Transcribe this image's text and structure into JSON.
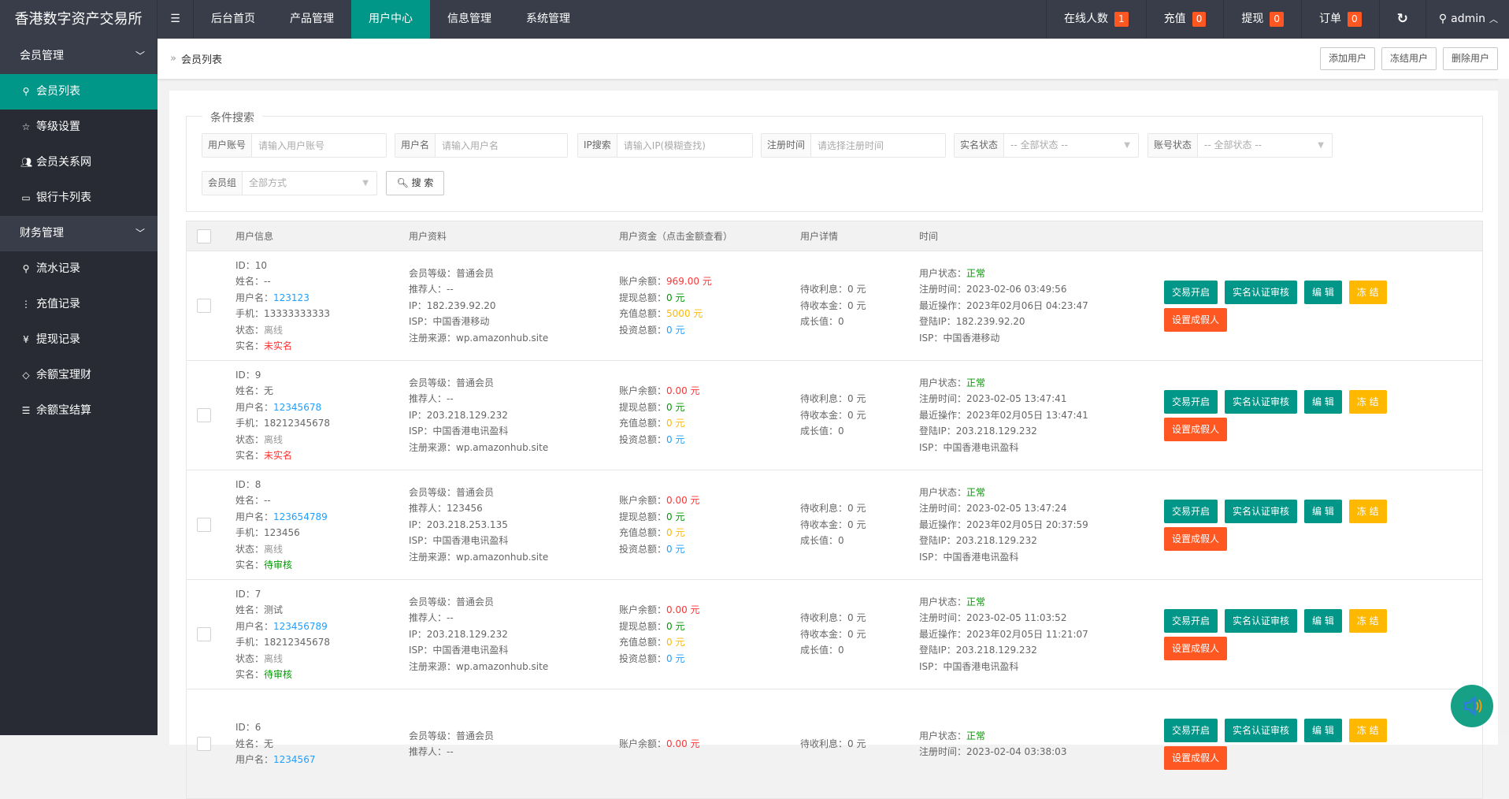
{
  "app_title": "香港数字资产交易所",
  "nav": [
    {
      "label": "后台首页"
    },
    {
      "label": "产品管理"
    },
    {
      "label": "用户中心",
      "active": true
    },
    {
      "label": "信息管理"
    },
    {
      "label": "系统管理"
    }
  ],
  "top_right": {
    "online": {
      "label": "在线人数",
      "count": "1"
    },
    "recharge": {
      "label": "充值",
      "count": "0"
    },
    "withdraw": {
      "label": "提现",
      "count": "0"
    },
    "order": {
      "label": "订单",
      "count": "0"
    },
    "user": "admin"
  },
  "sidebar": {
    "group1": {
      "label": "会员管理",
      "items": [
        {
          "label": "会员列表",
          "icon": "user-icon",
          "active": true
        },
        {
          "label": "等级设置",
          "icon": "star-icon"
        },
        {
          "label": "会员关系网",
          "icon": "users-icon"
        },
        {
          "label": "银行卡列表",
          "icon": "card-icon"
        }
      ]
    },
    "group2": {
      "label": "财务管理",
      "items": [
        {
          "label": "流水记录",
          "icon": "user-icon"
        },
        {
          "label": "充值记录",
          "icon": "more-vertical-icon"
        },
        {
          "label": "提现记录",
          "icon": "yen-icon"
        },
        {
          "label": "余额宝理财",
          "icon": "diamond-icon"
        },
        {
          "label": "余额宝结算",
          "icon": "list-icon"
        }
      ]
    }
  },
  "breadcrumb": "会员列表",
  "actions": {
    "add": "添加用户",
    "freeze": "冻结用户",
    "delete": "删除用户"
  },
  "search": {
    "legend": "条件搜索",
    "account": {
      "label": "用户账号",
      "placeholder": "请输入用户账号"
    },
    "username": {
      "label": "用户名",
      "placeholder": "请输入用户名"
    },
    "ip": {
      "label": "IP搜索",
      "placeholder": "请输入IP(模糊查找)"
    },
    "regtime": {
      "label": "注册时间",
      "placeholder": "请选择注册时间"
    },
    "realname": {
      "label": "实名状态",
      "value": "-- 全部状态 --"
    },
    "status": {
      "label": "账号状态",
      "value": "-- 全部状态 --"
    },
    "group": {
      "label": "会员组",
      "value": "全部方式"
    },
    "button": "搜 索"
  },
  "table": {
    "headers": [
      "用户信息",
      "用户资料",
      "用户资金（点击金额查看）",
      "用户详情",
      "时间"
    ],
    "button_labels": {
      "trade": "交易开启",
      "verify": "实名认证审核",
      "edit": "编 辑",
      "freeze": "冻 结",
      "fake": "设置成假人"
    },
    "rows": [
      {
        "id": "ID：10",
        "name": "姓名：--",
        "username_label": "用户名：",
        "username": "123123",
        "phone": "手机：13333333333",
        "state_label": "状态：",
        "state": "离线",
        "real_label": "实名：",
        "real": "未实名",
        "real_color": "red",
        "level": "会员等级：普通会员",
        "referrer": "推荐人：--",
        "ip": "IP：182.239.92.20",
        "isp": "ISP：中国香港移动",
        "source": "注册来源：wp.amazonhub.site",
        "balance": "969.00 元",
        "withdraw_total": "0 元",
        "recharge_total": "5000 元",
        "invest_total": "0 元",
        "interest": "待收利息：0 元",
        "principal": "待收本金：0 元",
        "growth": "成长值：0",
        "ustate": "正常",
        "regtime": "注册时间：2023-02-06 03:49:56",
        "lastop": "最近操作：2023年02月06日 04:23:47",
        "loginip": "登陆IP：182.239.92.20",
        "isp2": "ISP：中国香港移动"
      },
      {
        "id": "ID：9",
        "name": "姓名：无",
        "username_label": "用户名：",
        "username": "12345678",
        "phone": "手机：18212345678",
        "state_label": "状态：",
        "state": "离线",
        "real_label": "实名：",
        "real": "未实名",
        "real_color": "red",
        "level": "会员等级：普通会员",
        "referrer": "推荐人：--",
        "ip": "IP：203.218.129.232",
        "isp": "ISP：中国香港电讯盈科",
        "source": "注册来源：wp.amazonhub.site",
        "balance": "0.00 元",
        "withdraw_total": "0 元",
        "recharge_total": "0 元",
        "invest_total": "0 元",
        "interest": "待收利息：0 元",
        "principal": "待收本金：0 元",
        "growth": "成长值：0",
        "ustate": "正常",
        "regtime": "注册时间：2023-02-05 13:47:41",
        "lastop": "最近操作：2023年02月05日 13:47:41",
        "loginip": "登陆IP：203.218.129.232",
        "isp2": "ISP：中国香港电讯盈科"
      },
      {
        "id": "ID：8",
        "name": "姓名：--",
        "username_label": "用户名：",
        "username": "123654789",
        "phone": "手机：123456",
        "state_label": "状态：",
        "state": "离线",
        "real_label": "实名：",
        "real": "待审核",
        "real_color": "green",
        "level": "会员等级：普通会员",
        "referrer": "推荐人：123456",
        "ip": "IP：203.218.253.135",
        "isp": "ISP：中国香港电讯盈科",
        "source": "注册来源：wp.amazonhub.site",
        "balance": "0.00 元",
        "withdraw_total": "0 元",
        "recharge_total": "0 元",
        "invest_total": "0 元",
        "interest": "待收利息：0 元",
        "principal": "待收本金：0 元",
        "growth": "成长值：0",
        "ustate": "正常",
        "regtime": "注册时间：2023-02-05 13:47:24",
        "lastop": "最近操作：2023年02月05日 20:37:59",
        "loginip": "登陆IP：203.218.129.232",
        "isp2": "ISP：中国香港电讯盈科"
      },
      {
        "id": "ID：7",
        "name": "姓名：测试",
        "username_label": "用户名：",
        "username": "123456789",
        "phone": "手机：18212345678",
        "state_label": "状态：",
        "state": "离线",
        "real_label": "实名：",
        "real": "待审核",
        "real_color": "green",
        "level": "会员等级：普通会员",
        "referrer": "推荐人：--",
        "ip": "IP：203.218.129.232",
        "isp": "ISP：中国香港电讯盈科",
        "source": "注册来源：wp.amazonhub.site",
        "balance": "0.00 元",
        "withdraw_total": "0 元",
        "recharge_total": "0 元",
        "invest_total": "0 元",
        "interest": "待收利息：0 元",
        "principal": "待收本金：0 元",
        "growth": "成长值：0",
        "ustate": "正常",
        "regtime": "注册时间：2023-02-05 11:03:52",
        "lastop": "最近操作：2023年02月05日 11:21:07",
        "loginip": "登陆IP：203.218.129.232",
        "isp2": "ISP：中国香港电讯盈科"
      },
      {
        "id": "ID：6",
        "name": "姓名：无",
        "username_label": "用户名：",
        "username": "1234567",
        "level": "会员等级：普通会员",
        "referrer": "推荐人：--",
        "balance": "0.00 元",
        "interest": "待收利息：0 元",
        "ustate": "正常",
        "regtime": "注册时间：2023-02-04 03:38:03"
      }
    ],
    "fund_labels": {
      "balance": "账户余额：",
      "withdraw": "提现总额：",
      "recharge": "充值总额：",
      "invest": "投资总额："
    },
    "ustate_label": "用户状态："
  },
  "colors": {
    "accent": "#009688",
    "topbar": "#393D49",
    "sidebar": "#282B33",
    "badge": "#FF5722",
    "warn": "#FFB800"
  }
}
